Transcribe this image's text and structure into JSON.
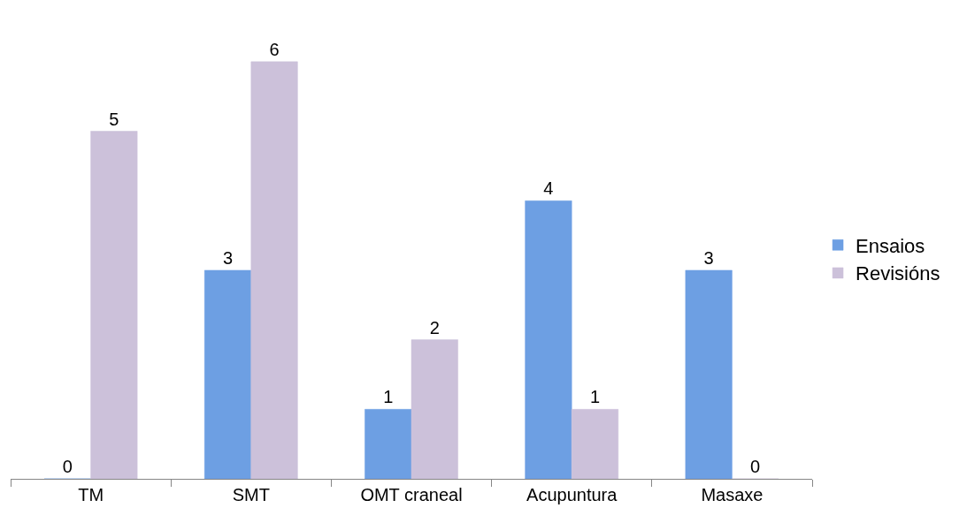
{
  "chart_data": {
    "type": "bar",
    "categories": [
      "TM",
      "SMT",
      "OMT craneal",
      "Acupuntura",
      "Masaxe"
    ],
    "series": [
      {
        "name": "Ensaios",
        "color": "#6d9fe3",
        "values": [
          0,
          3,
          1,
          4,
          3
        ]
      },
      {
        "name": "Revisións",
        "color": "#ccc1da",
        "values": [
          5,
          6,
          2,
          1,
          0
        ]
      }
    ],
    "data_labels": true,
    "legend": "right"
  }
}
